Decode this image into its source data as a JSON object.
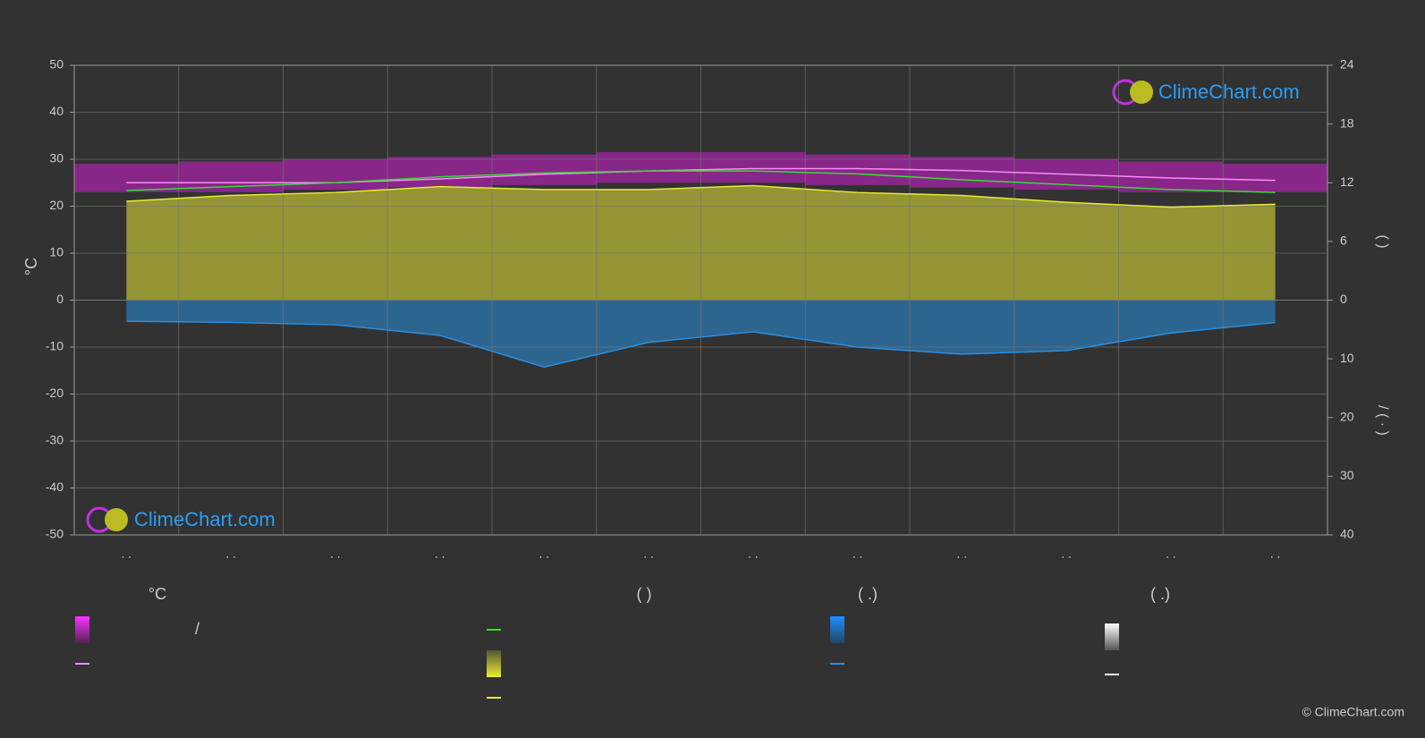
{
  "chart_data": {
    "type": "line",
    "y_label": "°C",
    "y2_label": "(     )",
    "y3_label": "/   ( · )",
    "categories": [
      ". .",
      ". .",
      ". .",
      ". .",
      ". .",
      ". .",
      ". .",
      ". .",
      ". .",
      ". .",
      ". .",
      ". ."
    ],
    "ylim": [
      -50,
      50
    ],
    "yticks": [
      -50,
      -40,
      -30,
      -20,
      -10,
      0,
      10,
      20,
      30,
      40,
      50
    ],
    "y2lim": [
      0,
      24
    ],
    "y2ticks": [
      0,
      6,
      12,
      18,
      24
    ],
    "y3lim": [
      0,
      40
    ],
    "y3ticks": [
      10,
      20,
      30,
      40
    ],
    "grid": true,
    "band_color": "#c21fc2",
    "temp_max": [
      29,
      29.5,
      30,
      30.5,
      31,
      31.5,
      31.5,
      31,
      30.5,
      30,
      29.5,
      29
    ],
    "temp_min": [
      23,
      23,
      23.5,
      24,
      24.5,
      25,
      25,
      24.5,
      24,
      23.5,
      23,
      23
    ],
    "series": [
      {
        "color": "#ff88ff",
        "axis": "y",
        "values": [
          25,
          25,
          25,
          25.8,
          26.8,
          27.5,
          28,
          28,
          27.6,
          26.8,
          26,
          25.5
        ]
      },
      {
        "color": "#33dd33",
        "axis": "y2",
        "values": [
          11.2,
          11.6,
          12.0,
          12.6,
          13.0,
          13.2,
          13.2,
          12.9,
          12.3,
          11.8,
          11.3,
          11.0
        ]
      },
      {
        "color": "#e8e838",
        "axis": "y2",
        "area": true,
        "values": [
          10.1,
          10.7,
          11.0,
          11.6,
          11.3,
          11.3,
          11.7,
          11.0,
          10.7,
          10.0,
          9.5,
          9.8
        ]
      },
      {
        "color": "#2a8fe0",
        "axis": "y3",
        "area": true,
        "values": [
          3.6,
          3.8,
          4.2,
          6.0,
          11.4,
          7.2,
          5.4,
          8.0,
          9.2,
          8.6,
          5.6,
          3.8
        ]
      }
    ],
    "legend_headers": [
      "°C",
      "(          )",
      "(   .)",
      "(   .)"
    ],
    "legend_slash": "/",
    "logo": "ClimeChart.com",
    "copyright": "© ClimeChart.com"
  }
}
